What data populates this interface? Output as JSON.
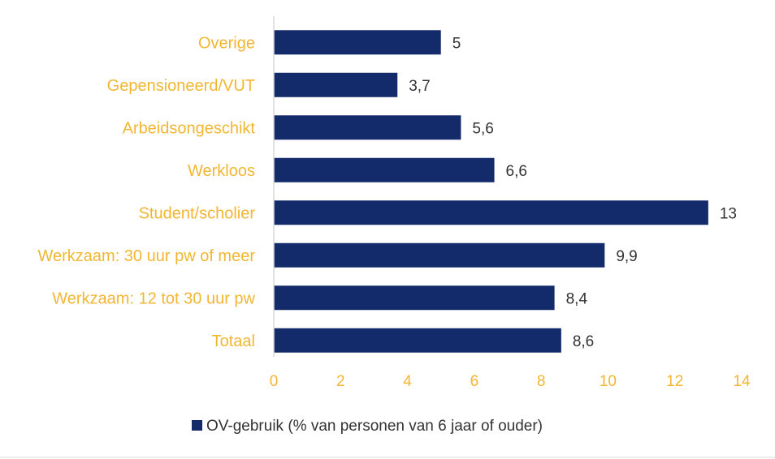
{
  "chart_data": {
    "type": "bar",
    "orientation": "horizontal",
    "categories": [
      "Overige",
      "Gepensioneerd/VUT",
      "Arbeidsongeschikt",
      "Werkloos",
      "Student/scholier",
      "Werkzaam: 30 uur pw of meer",
      "Werkzaam: 12 tot 30 uur pw",
      "Totaal"
    ],
    "series": [
      {
        "name": "OV-gebruik (% van personen van 6 jaar of ouder)",
        "values": [
          5,
          3.7,
          5.6,
          6.6,
          13,
          9.9,
          8.4,
          8.6
        ],
        "data_labels": [
          "5",
          "3,7",
          "5,6",
          "6,6",
          "13",
          "9,9",
          "8,4",
          "8,6"
        ]
      }
    ],
    "xlim": [
      0,
      14
    ],
    "x_ticks": [
      0,
      2,
      4,
      6,
      8,
      10,
      12,
      14
    ],
    "grid": false,
    "legend_position": "bottom",
    "colors": {
      "bar": "#132b6b",
      "category_text": "#f2b632",
      "tick_text": "#f2b632",
      "data_label_text": "#333333",
      "axis_line": "#d9d9d9"
    }
  }
}
